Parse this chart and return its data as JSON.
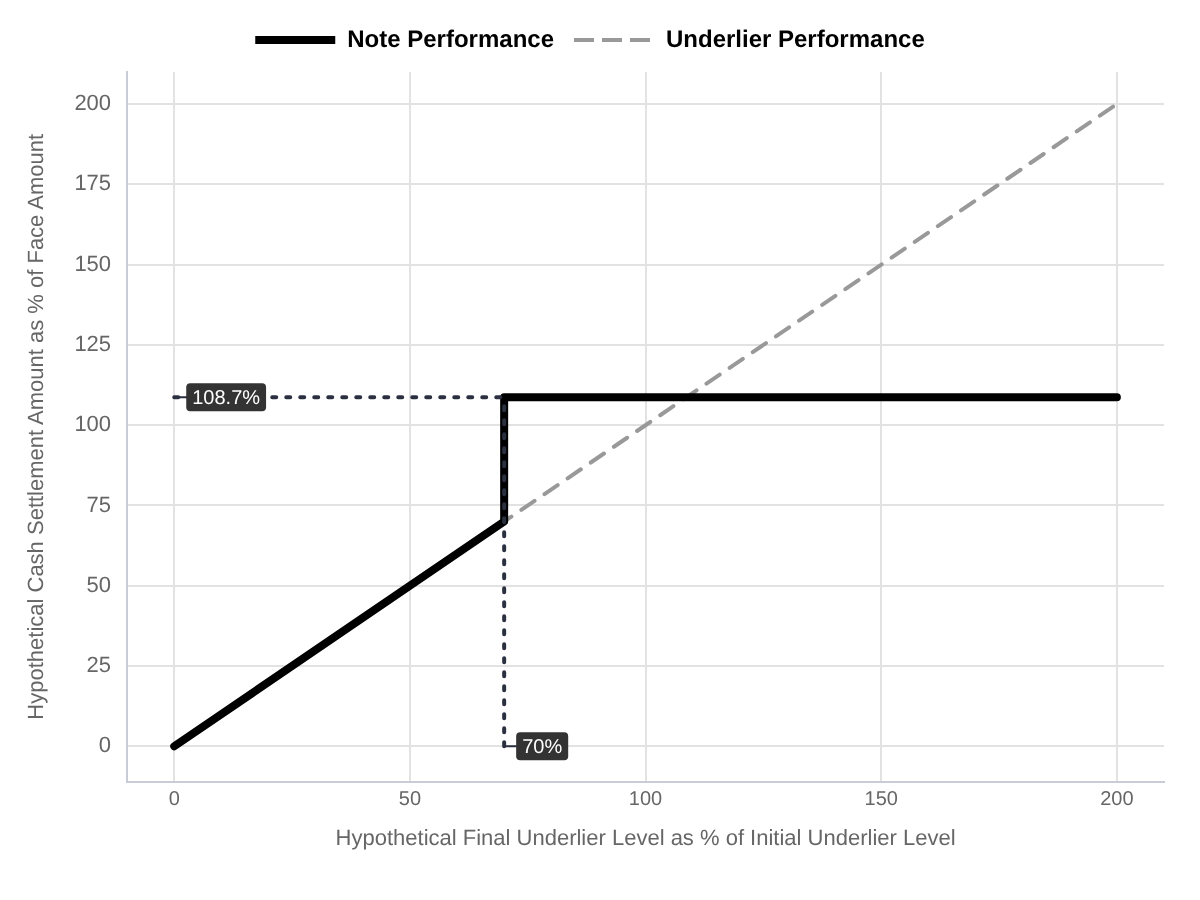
{
  "chart_data": {
    "type": "line",
    "xlabel": "Hypothetical Final Underlier Level as % of Initial Underlier Level",
    "ylabel": "Hypothetical Cash Settlement Amount as % of Face Amount",
    "series": [
      {
        "name": "Note Performance",
        "color": "#000000",
        "line_style": "solid",
        "x": [
          0,
          70,
          70,
          200
        ],
        "values": [
          0,
          70,
          108.7,
          108.7
        ]
      },
      {
        "name": "Underlier Performance",
        "color": "#999999",
        "line_style": "dashed",
        "x": [
          0,
          200
        ],
        "values": [
          0,
          200
        ]
      }
    ],
    "xlim": [
      -10,
      210
    ],
    "xticks": [
      0,
      50,
      100,
      150,
      200
    ],
    "ylim": [
      -11,
      210
    ],
    "yticks": [
      0,
      25,
      50,
      75,
      100,
      125,
      150,
      175,
      200
    ],
    "ref_lines": [
      {
        "axis": "y",
        "value": 108.7,
        "label": "108.7%",
        "color": "#2b3040",
        "line_style": "dotted"
      },
      {
        "axis": "x",
        "value": 70,
        "label": "70%",
        "color": "#2b3040",
        "line_style": "dotted"
      }
    ],
    "grid": true,
    "legend": "top",
    "marker": "none"
  }
}
